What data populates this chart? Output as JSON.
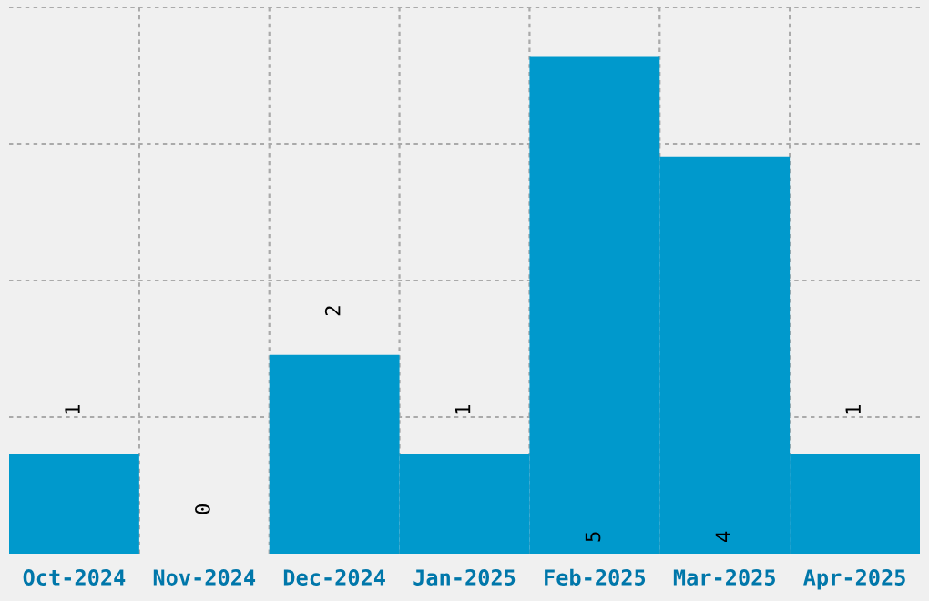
{
  "chart_data": {
    "type": "bar",
    "categories": [
      "Oct-2024",
      "Nov-2024",
      "Dec-2024",
      "Jan-2025",
      "Feb-2025",
      "Mar-2025",
      "Apr-2025"
    ],
    "values": [
      1,
      0,
      2,
      1,
      5,
      4,
      1
    ],
    "color": "#0099cc",
    "ylim": [
      0,
      5.5
    ],
    "yticks": [
      {
        "value": 1.375,
        "label": null
      },
      {
        "value": 2.75,
        "label": null
      },
      {
        "value": 4.125,
        "label": null
      },
      {
        "value": 5.5,
        "label": null
      }
    ],
    "tick_labels": "x",
    "grid": true,
    "data_labels": true
  }
}
